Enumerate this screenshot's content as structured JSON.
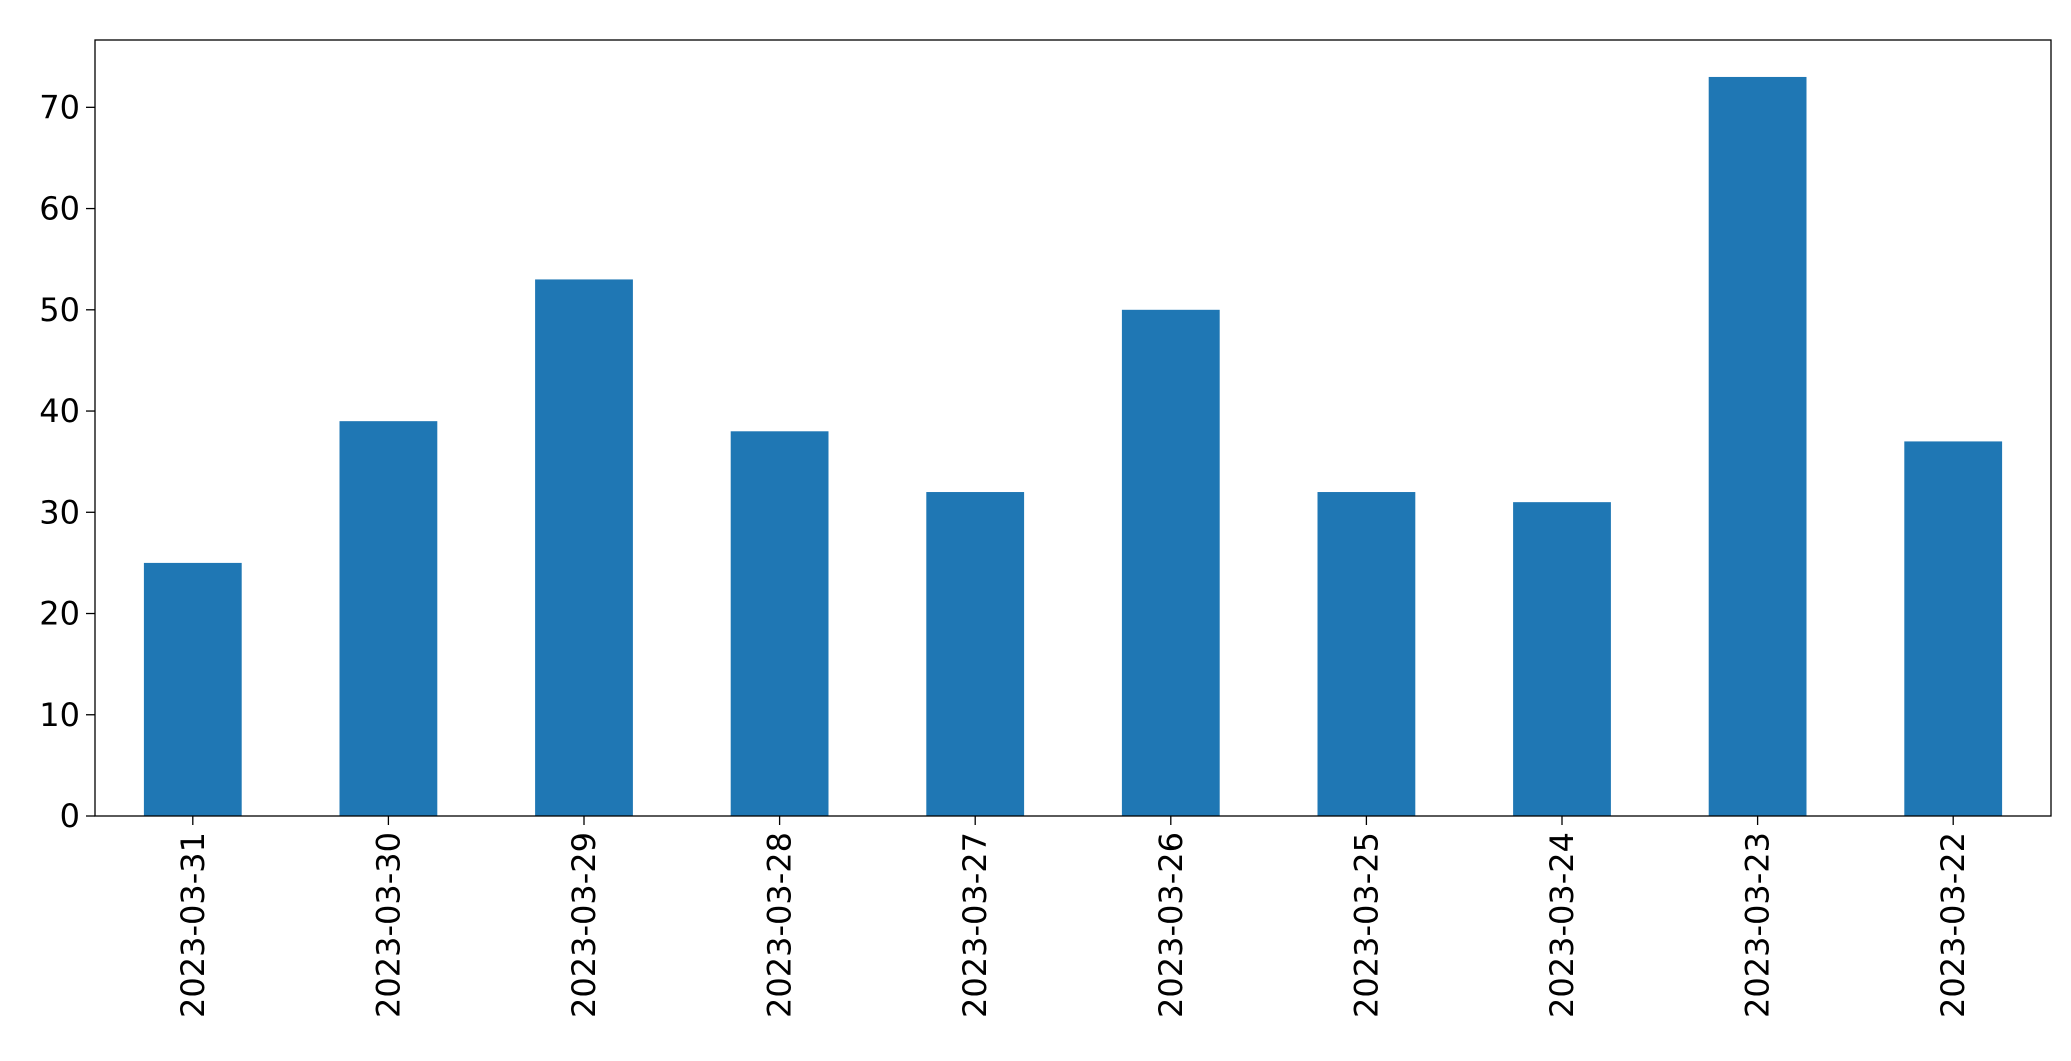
{
  "chart_data": {
    "type": "bar",
    "categories": [
      "2023-03-31",
      "2023-03-30",
      "2023-03-29",
      "2023-03-28",
      "2023-03-27",
      "2023-03-26",
      "2023-03-25",
      "2023-03-24",
      "2023-03-23",
      "2023-03-22"
    ],
    "values": [
      25,
      39,
      53,
      38,
      32,
      50,
      32,
      31,
      73,
      37
    ],
    "color": "#1f77b4",
    "ylim": [
      0,
      76.65
    ],
    "yticks": [
      0,
      10,
      20,
      30,
      40,
      50,
      60,
      70
    ],
    "grid": false
  }
}
